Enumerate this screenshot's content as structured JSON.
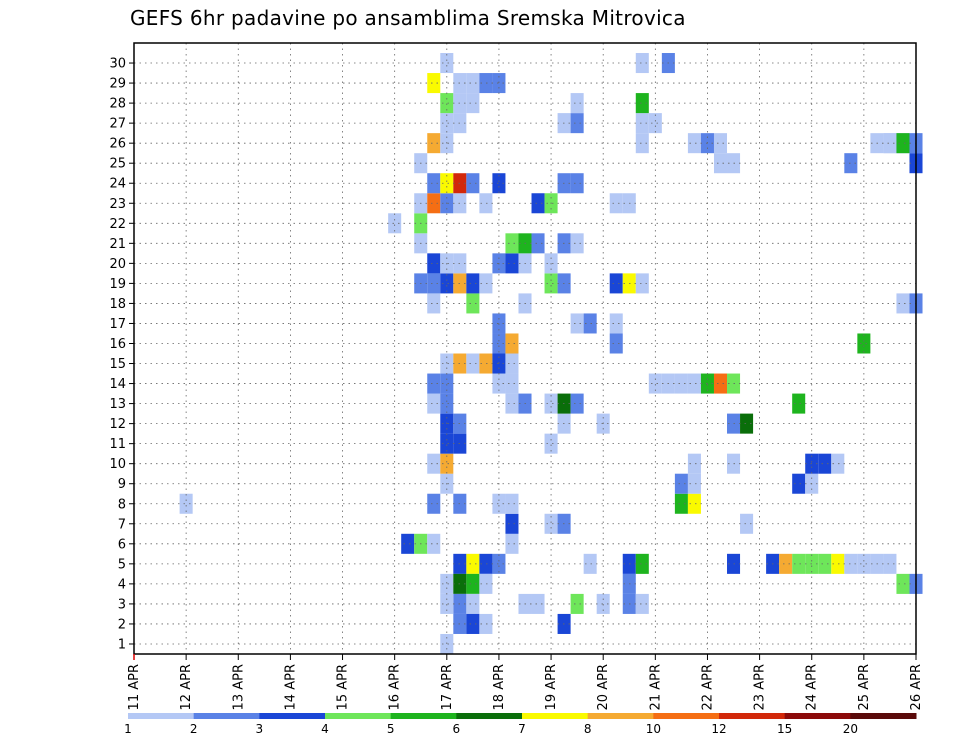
{
  "chart_data": {
    "type": "heatmap",
    "title": "GEFS 6hr padavine po ansamblima Sremska Mitrovica",
    "x_tick_labels": [
      "11 APR",
      "12 APR",
      "13 APR",
      "14 APR",
      "15 APR",
      "16 APR",
      "17 APR",
      "18 APR",
      "19 APR",
      "20 APR",
      "21 APR",
      "22 APR",
      "23 APR",
      "24 APR",
      "25 APR",
      "26 APR"
    ],
    "x_range": [
      "11 APR",
      "26 APR"
    ],
    "y_tick_labels": [
      "1",
      "2",
      "3",
      "4",
      "5",
      "6",
      "7",
      "8",
      "9",
      "10",
      "11",
      "12",
      "13",
      "14",
      "15",
      "16",
      "17",
      "18",
      "19",
      "20",
      "21",
      "22",
      "23",
      "24",
      "25",
      "26",
      "27",
      "28",
      "29",
      "30"
    ],
    "y_range": [
      0,
      30
    ],
    "grid": true,
    "colorbar": {
      "labels": [
        "1",
        "2",
        "3",
        "4",
        "5",
        "6",
        "7",
        "8",
        "10",
        "12",
        "15",
        "20"
      ],
      "colors": [
        "#b4c8f5",
        "#5a82e6",
        "#1a46d6",
        "#6ee65a",
        "#1eb41e",
        "#0a6e0a",
        "#fafa00",
        "#f5aa32",
        "#f56e14",
        "#d2280a",
        "#8c0a0a",
        "#5a0a0a"
      ]
    },
    "note_cells": "each cell: [day_offset_from_11APR (6h steps = 0.25), member, color_index]",
    "cells": [
      [
        6.0,
        0,
        0
      ],
      [
        1.0,
        7,
        0
      ],
      [
        5.25,
        5,
        2
      ],
      [
        5.5,
        5,
        3
      ],
      [
        5.75,
        5,
        0
      ],
      [
        6.25,
        4,
        2
      ],
      [
        6.5,
        4,
        6
      ],
      [
        6.75,
        4,
        2
      ],
      [
        6.0,
        3,
        0
      ],
      [
        6.25,
        3,
        5
      ],
      [
        6.5,
        3,
        4
      ],
      [
        6.75,
        3,
        0
      ],
      [
        6.25,
        2,
        1
      ],
      [
        6.0,
        2,
        0
      ],
      [
        6.5,
        2,
        0
      ],
      [
        6.25,
        1,
        1
      ],
      [
        6.5,
        1,
        2
      ],
      [
        6.75,
        1,
        0
      ],
      [
        8.25,
        1,
        2
      ],
      [
        7.5,
        2,
        0
      ],
      [
        7.75,
        2,
        0
      ],
      [
        8.5,
        2,
        3
      ],
      [
        9.0,
        2,
        0
      ],
      [
        9.5,
        2,
        1
      ],
      [
        9.75,
        2,
        0
      ],
      [
        9.5,
        3,
        1
      ],
      [
        14.75,
        3,
        3
      ],
      [
        15.0,
        3,
        1
      ],
      [
        7.0,
        4,
        1
      ],
      [
        8.75,
        4,
        0
      ],
      [
        9.5,
        4,
        2
      ],
      [
        9.75,
        4,
        4
      ],
      [
        11.5,
        4,
        2
      ],
      [
        12.25,
        4,
        2
      ],
      [
        12.5,
        4,
        7
      ],
      [
        12.75,
        4,
        3
      ],
      [
        13.0,
        4,
        3
      ],
      [
        13.25,
        4,
        3
      ],
      [
        13.5,
        4,
        6
      ],
      [
        13.75,
        4,
        0
      ],
      [
        14.0,
        4,
        0
      ],
      [
        14.25,
        4,
        0
      ],
      [
        14.5,
        4,
        0
      ],
      [
        7.25,
        5,
        0
      ],
      [
        7.25,
        6,
        2
      ],
      [
        8.0,
        6,
        0
      ],
      [
        8.25,
        6,
        1
      ],
      [
        11.75,
        6,
        0
      ],
      [
        5.75,
        7,
        1
      ],
      [
        6.25,
        7,
        1
      ],
      [
        7.0,
        7,
        0
      ],
      [
        7.25,
        7,
        0
      ],
      [
        10.5,
        7,
        4
      ],
      [
        10.75,
        7,
        6
      ],
      [
        6.0,
        8,
        0
      ],
      [
        10.5,
        8,
        1
      ],
      [
        10.75,
        8,
        0
      ],
      [
        12.75,
        8,
        2
      ],
      [
        13.0,
        8,
        0
      ],
      [
        5.75,
        9,
        0
      ],
      [
        6.0,
        9,
        7
      ],
      [
        10.75,
        9,
        0
      ],
      [
        11.5,
        9,
        0
      ],
      [
        13.0,
        9,
        2
      ],
      [
        13.25,
        9,
        2
      ],
      [
        13.5,
        9,
        0
      ],
      [
        6.0,
        10,
        2
      ],
      [
        6.25,
        10,
        2
      ],
      [
        8.0,
        10,
        0
      ],
      [
        6.0,
        11,
        2
      ],
      [
        6.25,
        11,
        1
      ],
      [
        8.25,
        11,
        0
      ],
      [
        9.0,
        11,
        0
      ],
      [
        11.5,
        11,
        1
      ],
      [
        11.75,
        11,
        5
      ],
      [
        5.75,
        12,
        0
      ],
      [
        6.0,
        12,
        1
      ],
      [
        7.25,
        12,
        0
      ],
      [
        7.5,
        12,
        1
      ],
      [
        8.0,
        12,
        0
      ],
      [
        8.25,
        12,
        5
      ],
      [
        8.5,
        12,
        1
      ],
      [
        12.75,
        12,
        4
      ],
      [
        5.75,
        13,
        1
      ],
      [
        6.0,
        13,
        1
      ],
      [
        7.0,
        13,
        0
      ],
      [
        7.25,
        13,
        0
      ],
      [
        10.0,
        13,
        0
      ],
      [
        10.25,
        13,
        0
      ],
      [
        10.5,
        13,
        0
      ],
      [
        10.75,
        13,
        0
      ],
      [
        11.0,
        13,
        4
      ],
      [
        11.25,
        13,
        8
      ],
      [
        11.5,
        13,
        3
      ],
      [
        6.0,
        14,
        0
      ],
      [
        6.25,
        14,
        7
      ],
      [
        6.5,
        14,
        0
      ],
      [
        6.75,
        14,
        7
      ],
      [
        7.0,
        14,
        2
      ],
      [
        7.25,
        14,
        0
      ],
      [
        7.0,
        15,
        1
      ],
      [
        7.25,
        15,
        7
      ],
      [
        9.25,
        15,
        1
      ],
      [
        14.0,
        15,
        4
      ],
      [
        7.0,
        16,
        1
      ],
      [
        8.5,
        16,
        0
      ],
      [
        8.75,
        16,
        1
      ],
      [
        9.25,
        16,
        0
      ],
      [
        5.75,
        17,
        0
      ],
      [
        6.5,
        17,
        3
      ],
      [
        7.5,
        17,
        0
      ],
      [
        14.75,
        17,
        0
      ],
      [
        15.0,
        17,
        1
      ],
      [
        5.5,
        18,
        1
      ],
      [
        5.75,
        18,
        1
      ],
      [
        6.0,
        18,
        2
      ],
      [
        6.25,
        18,
        7
      ],
      [
        6.5,
        18,
        2
      ],
      [
        6.75,
        18,
        0
      ],
      [
        8.0,
        18,
        3
      ],
      [
        8.25,
        18,
        1
      ],
      [
        9.25,
        18,
        2
      ],
      [
        9.5,
        18,
        6
      ],
      [
        9.75,
        18,
        0
      ],
      [
        5.75,
        19,
        2
      ],
      [
        6.0,
        19,
        0
      ],
      [
        6.25,
        19,
        0
      ],
      [
        7.0,
        19,
        1
      ],
      [
        7.25,
        19,
        2
      ],
      [
        7.5,
        19,
        0
      ],
      [
        8.0,
        19,
        0
      ],
      [
        5.5,
        20,
        0
      ],
      [
        7.25,
        20,
        3
      ],
      [
        7.5,
        20,
        4
      ],
      [
        7.75,
        20,
        1
      ],
      [
        8.25,
        20,
        1
      ],
      [
        8.5,
        20,
        0
      ],
      [
        5.5,
        21,
        3
      ],
      [
        5.0,
        21,
        0
      ],
      [
        5.5,
        22,
        0
      ],
      [
        5.75,
        22,
        8
      ],
      [
        6.0,
        22,
        1
      ],
      [
        6.25,
        22,
        0
      ],
      [
        6.75,
        22,
        0
      ],
      [
        7.75,
        22,
        2
      ],
      [
        8.0,
        22,
        3
      ],
      [
        9.25,
        22,
        0
      ],
      [
        9.5,
        22,
        0
      ],
      [
        5.75,
        23,
        1
      ],
      [
        6.0,
        23,
        6
      ],
      [
        6.25,
        23,
        9
      ],
      [
        6.5,
        23,
        1
      ],
      [
        7.0,
        23,
        2
      ],
      [
        8.25,
        23,
        1
      ],
      [
        8.5,
        23,
        1
      ],
      [
        5.5,
        24,
        0
      ],
      [
        11.25,
        24,
        0
      ],
      [
        11.5,
        24,
        0
      ],
      [
        13.75,
        24,
        1
      ],
      [
        15.0,
        24,
        2
      ],
      [
        5.75,
        25,
        7
      ],
      [
        6.0,
        25,
        0
      ],
      [
        9.75,
        25,
        0
      ],
      [
        10.75,
        25,
        0
      ],
      [
        11.0,
        25,
        1
      ],
      [
        11.25,
        25,
        0
      ],
      [
        14.5,
        25,
        0
      ],
      [
        14.75,
        25,
        0
      ],
      [
        14.75,
        25,
        0
      ],
      [
        14.5,
        25,
        0
      ],
      [
        14.75,
        25,
        4
      ],
      [
        15.0,
        25,
        1
      ],
      [
        14.25,
        25,
        0
      ],
      [
        6.0,
        26,
        0
      ],
      [
        6.25,
        26,
        0
      ],
      [
        8.25,
        26,
        0
      ],
      [
        8.5,
        26,
        1
      ],
      [
        9.75,
        26,
        0
      ],
      [
        10.0,
        26,
        0
      ],
      [
        6.0,
        27,
        3
      ],
      [
        6.25,
        27,
        0
      ],
      [
        6.5,
        27,
        0
      ],
      [
        8.5,
        27,
        0
      ],
      [
        9.75,
        27,
        4
      ],
      [
        5.75,
        28,
        6
      ],
      [
        6.25,
        28,
        0
      ],
      [
        6.5,
        28,
        0
      ],
      [
        6.75,
        28,
        1
      ],
      [
        7.0,
        28,
        1
      ],
      [
        6.0,
        29,
        0
      ],
      [
        9.75,
        29,
        0
      ],
      [
        10.25,
        29,
        1
      ]
    ]
  }
}
